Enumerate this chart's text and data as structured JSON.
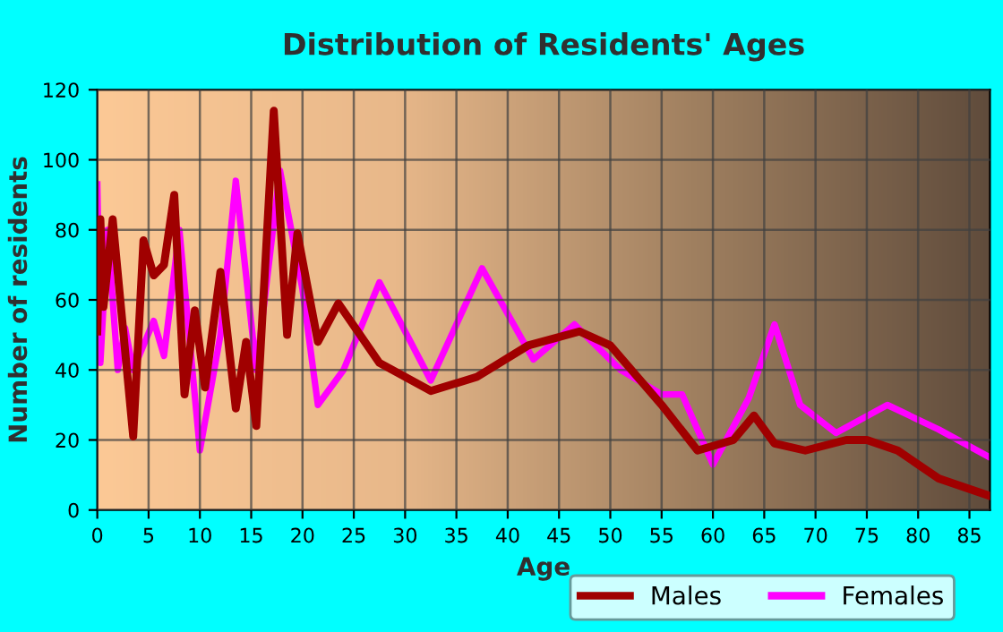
{
  "chart_data": {
    "type": "line",
    "title": "Distribution of Residents' Ages",
    "xlabel": "Age",
    "ylabel": "Number of residents",
    "series": [
      {
        "name": "Males",
        "color": "#a00000",
        "x": [
          0,
          0.3,
          0.6,
          1.5,
          3.5,
          4.5,
          5.5,
          6.5,
          7.5,
          8.5,
          9.5,
          10.5,
          12,
          13.5,
          14.5,
          15.5,
          17.2,
          18.5,
          19.5,
          21.5,
          23.5,
          27.5,
          32.5,
          37,
          42,
          47,
          50,
          55,
          58.5,
          62,
          64,
          66,
          69,
          73,
          75,
          78,
          82,
          87
        ],
        "values": [
          51,
          83,
          58,
          83,
          21,
          77,
          67,
          70,
          90,
          33,
          57,
          35,
          68,
          29,
          48,
          24,
          114,
          50,
          79,
          48,
          59,
          42,
          34,
          38,
          47,
          51,
          47,
          30,
          17,
          20,
          27,
          19,
          17,
          20,
          20,
          17,
          9,
          4
        ]
      },
      {
        "name": "Females",
        "color": "#ff00ff",
        "x": [
          0,
          0.3,
          1,
          2,
          2.7,
          3.5,
          4.5,
          5.5,
          6.5,
          8,
          10,
          12,
          13.5,
          15.5,
          17.8,
          20,
          21.5,
          24,
          27.5,
          32.5,
          37.5,
          42.5,
          46.5,
          51,
          55,
          57,
          60,
          63.5,
          66,
          68.5,
          72,
          77,
          82,
          87
        ],
        "values": [
          93,
          42,
          80,
          40,
          52,
          40,
          47,
          54,
          44,
          80,
          17,
          50,
          94,
          40,
          97,
          63,
          30,
          40,
          65,
          37,
          69,
          43,
          53,
          40,
          33,
          33,
          13,
          32,
          53,
          30,
          22,
          30,
          23,
          15
        ]
      }
    ],
    "xlim": [
      0,
      87
    ],
    "ylim": [
      0,
      120
    ],
    "xticks": [
      0,
      5,
      10,
      15,
      20,
      25,
      30,
      35,
      40,
      45,
      50,
      55,
      60,
      65,
      70,
      75,
      80,
      85
    ],
    "yticks": [
      0,
      20,
      40,
      60,
      80,
      100,
      120
    ],
    "grid": true,
    "legend": "bottom",
    "marker": "none",
    "line_style": "solid"
  }
}
